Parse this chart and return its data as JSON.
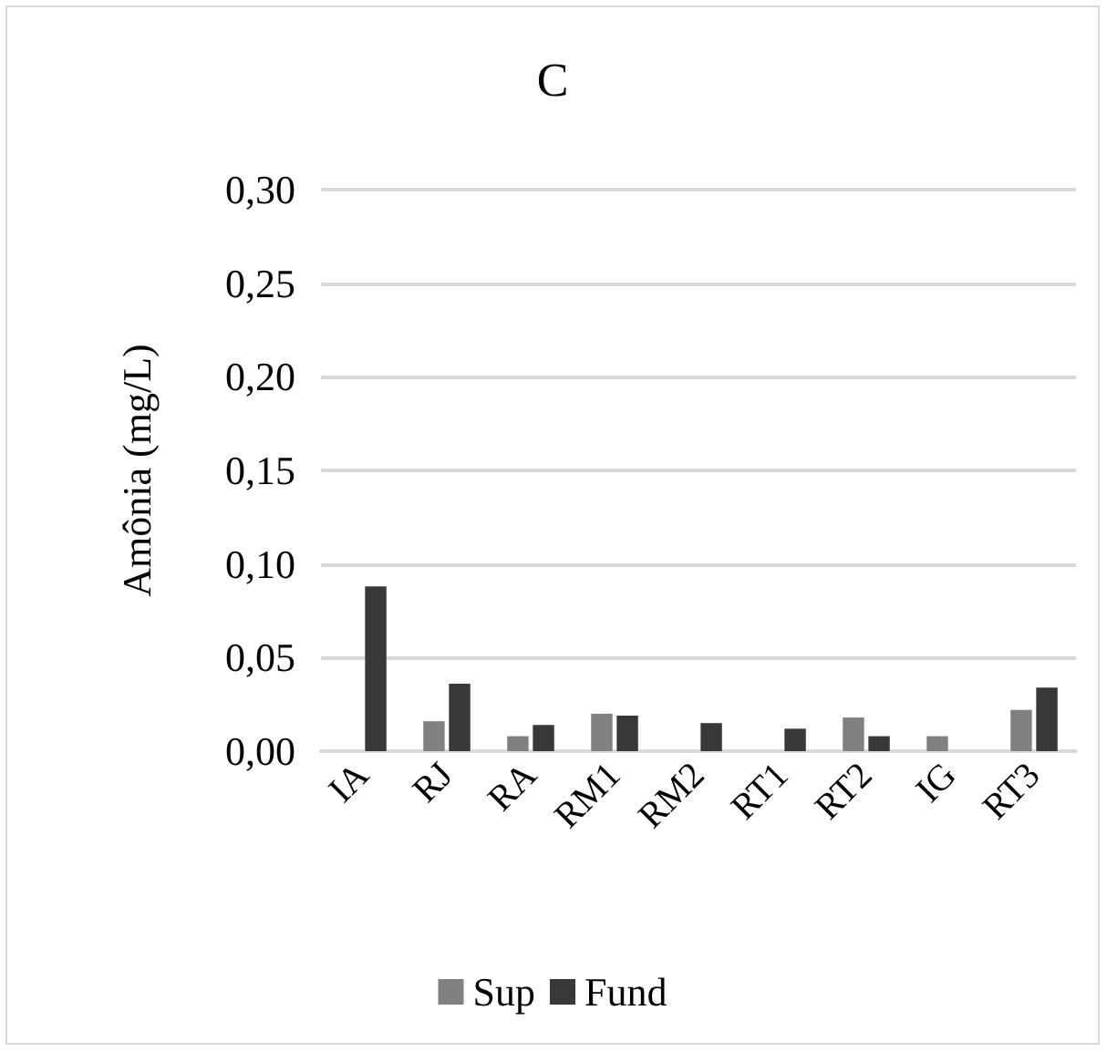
{
  "chart_data": {
    "type": "bar",
    "title": "C",
    "ylabel": "Amônia (mg/L)",
    "categories": [
      "IA",
      "RJ",
      "RA",
      "RM1",
      "RM2",
      "RT1",
      "RT2",
      "IG",
      "RT3"
    ],
    "series": [
      {
        "name": "Sup",
        "color": "#808080",
        "values": [
          null,
          0.016,
          0.008,
          0.02,
          null,
          null,
          0.018,
          0.008,
          0.022
        ]
      },
      {
        "name": "Fund",
        "color": "#3a3836",
        "values": [
          0.088,
          0.036,
          0.014,
          0.019,
          0.015,
          0.012,
          0.008,
          null,
          0.034
        ]
      }
    ],
    "ylim": [
      0,
      0.3
    ],
    "yticks": [
      {
        "value": 0,
        "label": "0,00"
      },
      {
        "value": 0.05,
        "label": "0,05"
      },
      {
        "value": 0.1,
        "label": "0,10"
      },
      {
        "value": 0.15,
        "label": "0,15"
      },
      {
        "value": 0.2,
        "label": "0,20"
      },
      {
        "value": 0.25,
        "label": "0,25"
      },
      {
        "value": 0.3,
        "label": "0,30"
      }
    ],
    "grid": "y",
    "legend": "bottom"
  }
}
